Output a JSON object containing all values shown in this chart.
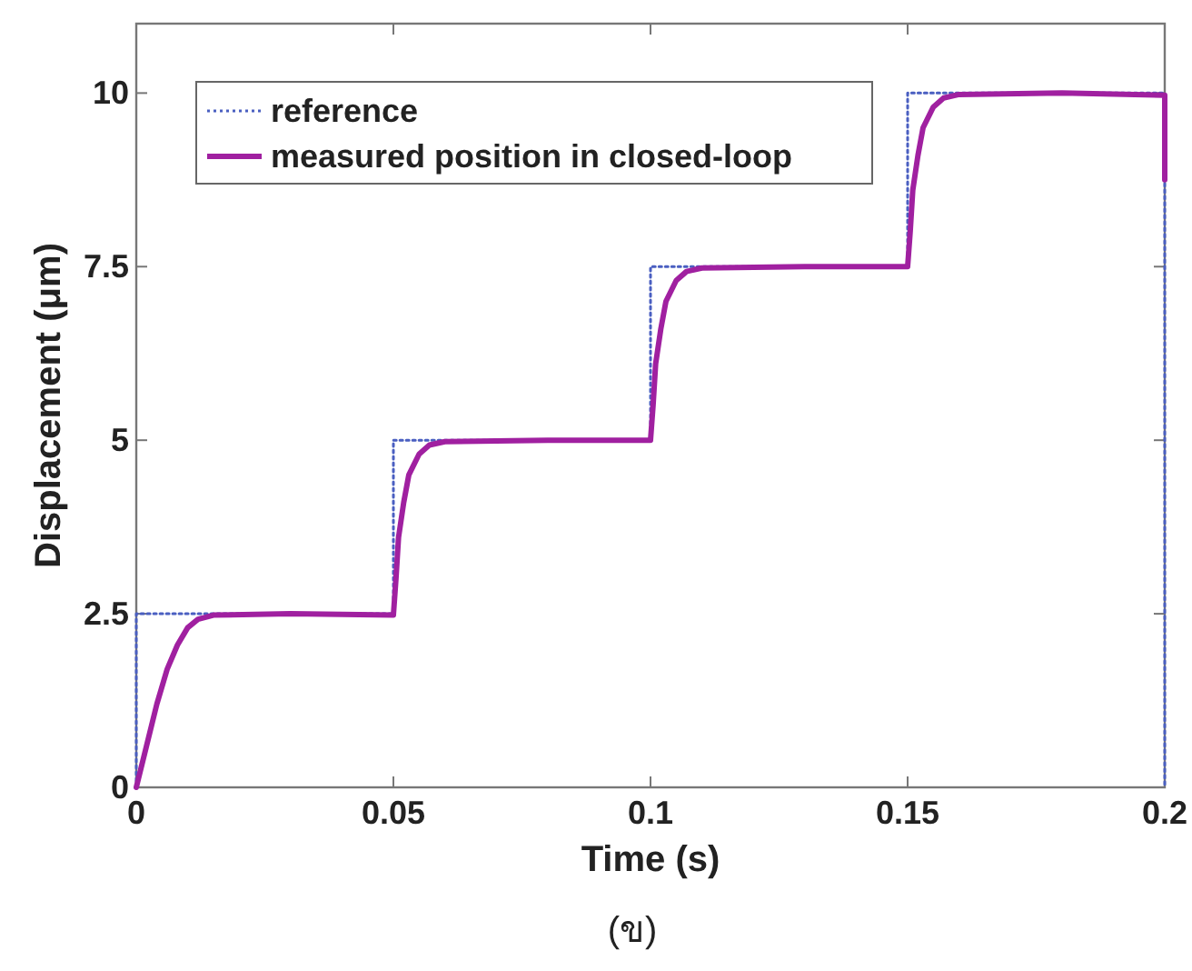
{
  "chart_data": {
    "type": "line",
    "xlabel": "Time (s)",
    "ylabel": "Displacement (μm)",
    "annotations": [
      "(ข)"
    ],
    "xlim": [
      0,
      0.2
    ],
    "xticks": [
      0,
      0.05,
      0.1,
      0.15,
      0.2
    ],
    "ylim": [
      0,
      11
    ],
    "yticks": [
      0,
      2.5,
      5,
      7.5,
      10
    ],
    "grid": false,
    "legend": "top left",
    "series": [
      {
        "name": "reference",
        "color": "#4a5fc1",
        "line_style": "dotted",
        "x": [
          0,
          0,
          0.05,
          0.05,
          0.1,
          0.1,
          0.15,
          0.15,
          0.2,
          0.2
        ],
        "values": [
          0,
          2.5,
          2.5,
          5,
          5,
          7.5,
          7.5,
          10,
          10,
          0
        ]
      },
      {
        "name": "measured position in closed-loop",
        "color": "#a020a0",
        "line_style": "solid",
        "x": [
          0,
          0.002,
          0.004,
          0.006,
          0.008,
          0.01,
          0.012,
          0.015,
          0.03,
          0.05,
          0.0505,
          0.051,
          0.052,
          0.053,
          0.055,
          0.057,
          0.06,
          0.08,
          0.1,
          0.1005,
          0.101,
          0.102,
          0.103,
          0.105,
          0.107,
          0.11,
          0.13,
          0.15,
          0.1505,
          0.151,
          0.152,
          0.153,
          0.155,
          0.157,
          0.16,
          0.18,
          0.2,
          0.2
        ],
        "values": [
          0,
          0.6,
          1.2,
          1.7,
          2.05,
          2.3,
          2.42,
          2.48,
          2.5,
          2.48,
          3.0,
          3.6,
          4.1,
          4.5,
          4.8,
          4.93,
          4.98,
          5.0,
          5.0,
          5.5,
          6.1,
          6.6,
          7.0,
          7.3,
          7.43,
          7.48,
          7.5,
          7.5,
          8.0,
          8.6,
          9.1,
          9.5,
          9.8,
          9.93,
          9.98,
          10.0,
          9.97,
          8.75
        ]
      }
    ]
  }
}
